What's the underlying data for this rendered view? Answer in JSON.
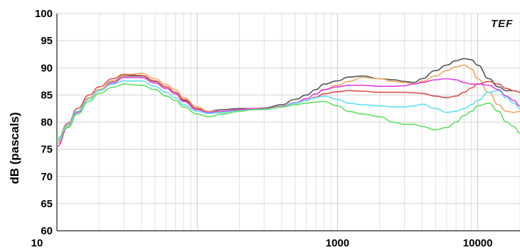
{
  "chart_data": {
    "type": "line",
    "title": "",
    "xlabel": "",
    "ylabel": "dB (pascals)",
    "logo_text": "TEF",
    "x_scale": "log",
    "xlim": [
      10,
      20000
    ],
    "ylim": [
      60,
      100
    ],
    "x_ticks": [
      "10",
      "1000",
      "10000"
    ],
    "y_ticks": [
      "100",
      "95",
      "90",
      "85",
      "80",
      "75",
      "70",
      "65",
      "60"
    ],
    "grid": true,
    "legend": "none",
    "x": [
      10,
      12,
      14,
      17,
      20,
      25,
      30,
      40,
      50,
      60,
      70,
      80,
      100,
      120,
      150,
      200,
      250,
      300,
      400,
      500,
      600,
      700,
      800,
      1000,
      1200,
      1500,
      2000,
      2500,
      3000,
      3500,
      4000,
      5000,
      6000,
      7000,
      8000,
      9000,
      10000,
      12000,
      14000,
      16000,
      18000,
      20000
    ],
    "series": [
      {
        "color": "#555555",
        "values": [
          76.0,
          79.5,
          82.0,
          84.5,
          86.0,
          87.5,
          88.5,
          88.5,
          87.5,
          86.5,
          85.5,
          84.0,
          82.5,
          82.0,
          82.3,
          82.5,
          82.5,
          82.6,
          83.2,
          84.2,
          85.0,
          86.0,
          87.0,
          87.6,
          88.3,
          88.5,
          88.0,
          87.8,
          87.5,
          87.3,
          88.0,
          89.5,
          90.5,
          91.3,
          91.7,
          91.5,
          90.5,
          88.0,
          86.5,
          85.8,
          85.8,
          85.5
        ]
      },
      {
        "color": "#f0a860",
        "values": [
          76.0,
          79.3,
          81.8,
          84.5,
          86.0,
          87.6,
          88.6,
          89.0,
          88.0,
          86.9,
          86.0,
          84.5,
          82.8,
          82.0,
          82.0,
          82.3,
          82.5,
          82.5,
          82.8,
          83.5,
          84.3,
          85.2,
          86.0,
          86.8,
          87.5,
          88.2,
          88.0,
          87.5,
          87.3,
          87.0,
          87.5,
          88.5,
          89.5,
          90.2,
          90.5,
          89.8,
          88.0,
          85.5,
          83.2,
          82.0,
          81.8,
          82.0
        ]
      },
      {
        "color": "#e05050",
        "values": [
          76.5,
          79.8,
          82.5,
          85.0,
          86.5,
          88.0,
          88.8,
          88.6,
          87.6,
          86.5,
          85.5,
          84.2,
          82.5,
          81.8,
          81.8,
          82.2,
          82.4,
          82.5,
          82.8,
          83.5,
          84.0,
          84.6,
          85.2,
          85.6,
          85.8,
          85.7,
          85.5,
          85.5,
          85.5,
          85.4,
          85.3,
          84.8,
          84.5,
          84.8,
          85.5,
          86.3,
          87.0,
          87.5,
          87.0,
          86.2,
          85.8,
          85.5
        ]
      },
      {
        "color": "#e040e0",
        "values": [
          75.5,
          79.0,
          81.8,
          84.2,
          85.8,
          87.2,
          88.2,
          88.2,
          87.2,
          86.2,
          85.2,
          83.8,
          82.3,
          81.8,
          82.0,
          82.3,
          82.5,
          82.5,
          82.9,
          83.6,
          84.3,
          85.2,
          86.0,
          86.5,
          86.8,
          86.8,
          86.6,
          86.6,
          86.7,
          87.0,
          87.3,
          87.8,
          88.0,
          87.8,
          87.3,
          87.0,
          87.0,
          86.8,
          86.0,
          84.8,
          84.0,
          83.0
        ]
      },
      {
        "color": "#60e0f0",
        "values": [
          76.5,
          79.5,
          82.0,
          84.2,
          85.8,
          87.0,
          87.6,
          87.6,
          86.6,
          85.5,
          84.5,
          83.2,
          82.0,
          81.6,
          81.8,
          82.1,
          82.3,
          82.3,
          82.8,
          83.5,
          84.0,
          84.5,
          84.8,
          84.2,
          83.5,
          83.2,
          83.0,
          82.8,
          82.8,
          83.0,
          83.3,
          82.5,
          81.8,
          82.0,
          82.5,
          83.2,
          84.0,
          85.5,
          85.8,
          84.5,
          83.5,
          82.5
        ]
      },
      {
        "color": "#60e060",
        "values": [
          77.0,
          79.0,
          81.5,
          83.8,
          85.3,
          86.4,
          87.0,
          86.8,
          86.0,
          84.8,
          84.0,
          82.8,
          81.5,
          81.0,
          81.5,
          82.0,
          82.3,
          82.4,
          82.8,
          83.2,
          83.5,
          83.7,
          83.8,
          83.0,
          82.0,
          81.5,
          81.0,
          80.0,
          79.6,
          79.6,
          79.2,
          78.6,
          79.0,
          80.0,
          81.2,
          82.0,
          83.0,
          83.5,
          82.0,
          80.0,
          79.2,
          78.0
        ]
      }
    ]
  }
}
